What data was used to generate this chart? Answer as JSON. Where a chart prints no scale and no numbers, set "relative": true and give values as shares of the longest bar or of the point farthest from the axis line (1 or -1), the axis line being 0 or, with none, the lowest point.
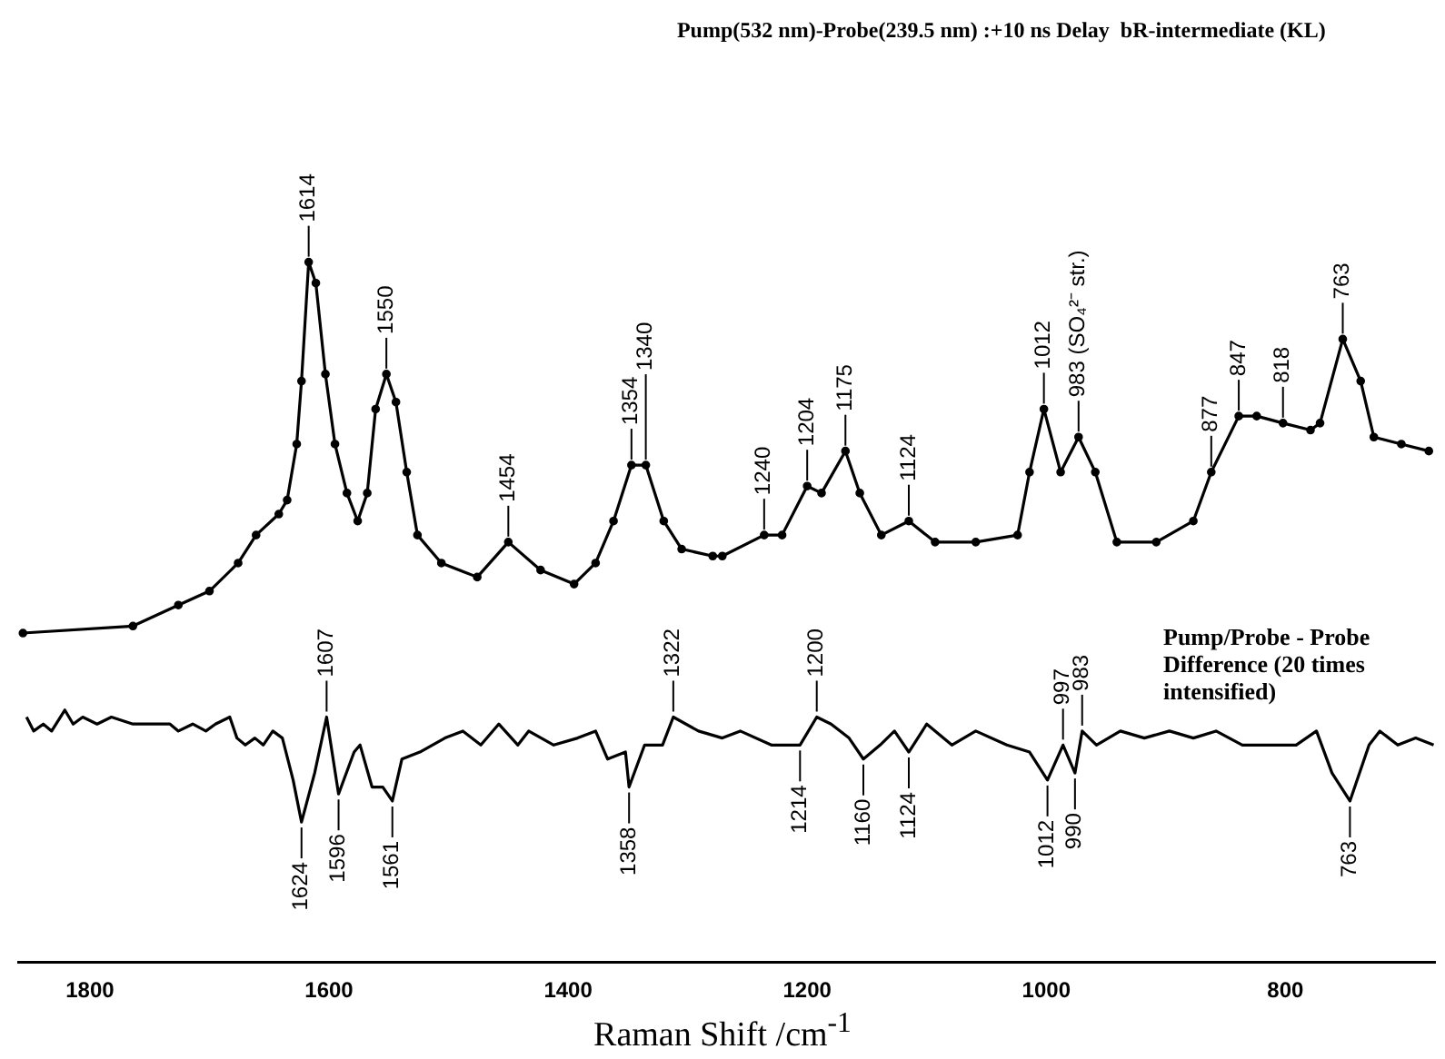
{
  "chart_data": {
    "type": "line",
    "relative": true,
    "title": "Pump(532 nm)-Probe(239.5 nm) :+10 ns Delay  bR-intermediate (KL)",
    "xlabel": "Raman Shift /cm$^{-1}$",
    "xlim": [
      1860,
      675
    ],
    "xticks": [
      1800,
      1600,
      1400,
      1200,
      1000,
      800
    ],
    "grid": false,
    "legend": false,
    "line_style": "solid",
    "series": [
      {
        "color": "#000000",
        "marker": "circle",
        "x": [
          1856,
          1764,
          1726,
          1700,
          1676,
          1661,
          1642,
          1635,
          1627,
          1623,
          1617,
          1611,
          1603,
          1595,
          1585,
          1576,
          1568,
          1561,
          1552,
          1544,
          1535,
          1526,
          1506,
          1476,
          1450,
          1423,
          1395,
          1377,
          1362,
          1347,
          1335,
          1320,
          1305,
          1279,
          1271,
          1236,
          1221,
          1200,
          1188,
          1168,
          1156,
          1138,
          1115,
          1093,
          1059,
          1024,
          1014,
          1002,
          988,
          973,
          959,
          941,
          908,
          877,
          862,
          839,
          824,
          802,
          779,
          771,
          752,
          737,
          726,
          703,
          680
        ],
        "values": [
          0.47,
          0.48,
          0.51,
          0.53,
          0.57,
          0.61,
          0.64,
          0.66,
          0.74,
          0.83,
          1.0,
          0.97,
          0.84,
          0.74,
          0.67,
          0.63,
          0.67,
          0.79,
          0.84,
          0.8,
          0.7,
          0.61,
          0.57,
          0.55,
          0.6,
          0.56,
          0.54,
          0.57,
          0.63,
          0.71,
          0.71,
          0.63,
          0.59,
          0.58,
          0.58,
          0.61,
          0.61,
          0.68,
          0.67,
          0.73,
          0.67,
          0.61,
          0.63,
          0.6,
          0.6,
          0.61,
          0.7,
          0.79,
          0.7,
          0.75,
          0.7,
          0.6,
          0.6,
          0.63,
          0.7,
          0.78,
          0.78,
          0.77,
          0.76,
          0.77,
          0.89,
          0.83,
          0.75,
          0.74,
          0.73
        ]
      },
      {
        "name": "Pump/Probe - Probe Difference (20 times intensified)",
        "color": "#000000",
        "x": [
          1853,
          1847,
          1839,
          1832,
          1821,
          1814,
          1806,
          1794,
          1782,
          1764,
          1748,
          1733,
          1726,
          1714,
          1703,
          1695,
          1683,
          1677,
          1670,
          1662,
          1655,
          1647,
          1639,
          1630,
          1623,
          1612,
          1602,
          1592,
          1579,
          1574,
          1564,
          1555,
          1547,
          1539,
          1524,
          1503,
          1488,
          1473,
          1458,
          1442,
          1433,
          1412,
          1392,
          1377,
          1367,
          1352,
          1349,
          1336,
          1321,
          1312,
          1291,
          1271,
          1256,
          1230,
          1206,
          1192,
          1180,
          1165,
          1153,
          1139,
          1127,
          1115,
          1100,
          1079,
          1059,
          1033,
          1014,
          999,
          986,
          976,
          970,
          958,
          938,
          918,
          897,
          877,
          858,
          836,
          817,
          791,
          774,
          761,
          746,
          730,
          721,
          706,
          691,
          676
        ],
        "values": [
          0.35,
          0.33,
          0.34,
          0.33,
          0.36,
          0.34,
          0.35,
          0.34,
          0.35,
          0.34,
          0.34,
          0.34,
          0.33,
          0.34,
          0.33,
          0.34,
          0.35,
          0.32,
          0.31,
          0.32,
          0.31,
          0.33,
          0.32,
          0.26,
          0.2,
          0.27,
          0.35,
          0.24,
          0.3,
          0.31,
          0.25,
          0.25,
          0.23,
          0.29,
          0.3,
          0.32,
          0.33,
          0.31,
          0.34,
          0.31,
          0.33,
          0.31,
          0.32,
          0.33,
          0.29,
          0.3,
          0.25,
          0.31,
          0.31,
          0.35,
          0.33,
          0.32,
          0.33,
          0.31,
          0.31,
          0.35,
          0.34,
          0.32,
          0.29,
          0.31,
          0.33,
          0.3,
          0.34,
          0.31,
          0.33,
          0.31,
          0.3,
          0.26,
          0.31,
          0.27,
          0.33,
          0.31,
          0.33,
          0.32,
          0.33,
          0.32,
          0.33,
          0.31,
          0.31,
          0.31,
          0.33,
          0.27,
          0.23,
          0.31,
          0.33,
          0.31,
          0.32,
          0.31
        ]
      }
    ],
    "annotations": [
      {
        "text": "1614",
        "x": 1617,
        "y": 1.0
      },
      {
        "text": "1550",
        "x": 1552,
        "y": 0.84
      },
      {
        "text": "1454",
        "x": 1450,
        "y": 0.6
      },
      {
        "text": "1354",
        "x": 1347,
        "y": 0.71
      },
      {
        "text": "1340",
        "x": 1335,
        "y": 0.71
      },
      {
        "text": "1240",
        "x": 1236,
        "y": 0.61
      },
      {
        "text": "1204",
        "x": 1200,
        "y": 0.68
      },
      {
        "text": "1175",
        "x": 1168,
        "y": 0.73
      },
      {
        "text": "1124",
        "x": 1115,
        "y": 0.63
      },
      {
        "text": "1012",
        "x": 1002,
        "y": 0.79
      },
      {
        "text": "983 (SO₄²⁻ str.)",
        "x": 973,
        "y": 0.75
      },
      {
        "text": "877",
        "x": 862,
        "y": 0.7
      },
      {
        "text": "847",
        "x": 839,
        "y": 0.78
      },
      {
        "text": "818",
        "x": 802,
        "y": 0.77
      },
      {
        "text": "763",
        "x": 752,
        "y": 0.89
      },
      {
        "text": "1607",
        "x": 1602,
        "y": 0.35
      },
      {
        "text": "1322",
        "x": 1312,
        "y": 0.35
      },
      {
        "text": "1200",
        "x": 1192,
        "y": 0.35
      },
      {
        "text": "997",
        "x": 986,
        "y": 0.31
      },
      {
        "text": "983",
        "x": 970,
        "y": 0.33
      },
      {
        "text": "1624",
        "x": 1623,
        "y": 0.2
      },
      {
        "text": "1596",
        "x": 1592,
        "y": 0.24
      },
      {
        "text": "1561",
        "x": 1547,
        "y": 0.23
      },
      {
        "text": "1358",
        "x": 1349,
        "y": 0.25
      },
      {
        "text": "1214",
        "x": 1206,
        "y": 0.31
      },
      {
        "text": "1160",
        "x": 1153,
        "y": 0.29
      },
      {
        "text": "1124",
        "x": 1115,
        "y": 0.3
      },
      {
        "text": "1012",
        "x": 999,
        "y": 0.26
      },
      {
        "text": "990",
        "x": 976,
        "y": 0.27
      },
      {
        "text": "763",
        "x": 746,
        "y": 0.23
      }
    ]
  }
}
